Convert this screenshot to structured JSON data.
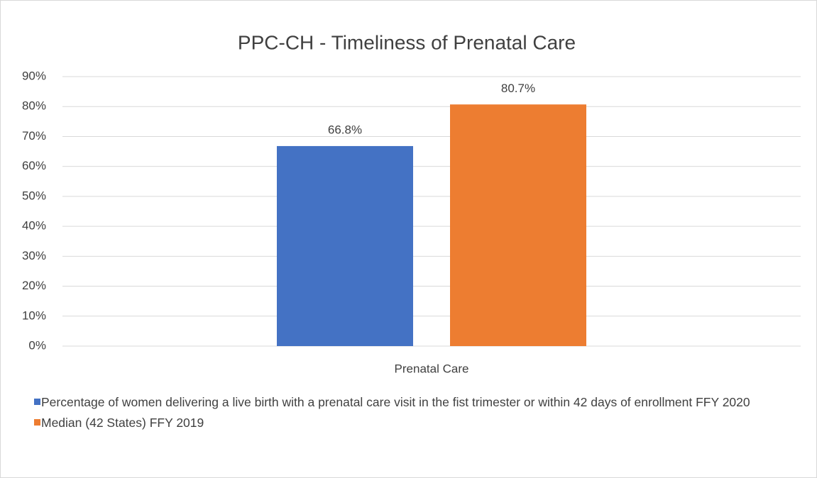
{
  "chart_data": {
    "type": "bar",
    "title": "PPC-CH - Timeliness of Prenatal Care",
    "categories": [
      "Prenatal Care"
    ],
    "series": [
      {
        "name": "Percentage of women delivering a live birth with a prenatal care visit in the fist trimester or within 42 days of enrollment FFY 2020",
        "color": "#4472c4",
        "values": [
          66.8
        ],
        "value_labels": [
          "66.8%"
        ]
      },
      {
        "name": "Median (42 States) FFY 2019",
        "color": "#ed7d31",
        "values": [
          80.7
        ],
        "value_labels": [
          "80.7%"
        ]
      }
    ],
    "ylim": [
      0,
      90
    ],
    "yticks": [
      {
        "value": 0,
        "label": "0%"
      },
      {
        "value": 10,
        "label": "10%"
      },
      {
        "value": 20,
        "label": "20%"
      },
      {
        "value": 30,
        "label": "30%"
      },
      {
        "value": 40,
        "label": "40%"
      },
      {
        "value": 50,
        "label": "50%"
      },
      {
        "value": 60,
        "label": "60%"
      },
      {
        "value": 70,
        "label": "70%"
      },
      {
        "value": 80,
        "label": "80%"
      },
      {
        "value": 90,
        "label": "90%"
      }
    ],
    "grid": true,
    "legend": "bottom"
  }
}
